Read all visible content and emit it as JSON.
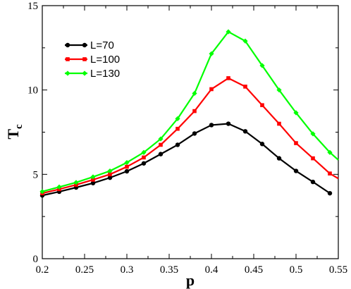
{
  "chart_data": {
    "type": "line",
    "title": "",
    "xlabel": "p",
    "ylabel_main": "T",
    "ylabel_sub": "c",
    "xlim": [
      0.2,
      0.55
    ],
    "ylim": [
      0,
      15
    ],
    "xticks": [
      0.2,
      0.25,
      0.3,
      0.35,
      0.4,
      0.45,
      0.5,
      0.55
    ],
    "xtick_labels": [
      "0.2",
      "0.25",
      "0.3",
      "0.35",
      "0.4",
      "0.45",
      "0.5",
      "0.55"
    ],
    "yticks": [
      0,
      5,
      10,
      15
    ],
    "ytick_labels": [
      "0",
      "5",
      "10",
      "15"
    ],
    "grid": false,
    "legend_position": "top-left",
    "series": [
      {
        "name": "L=70",
        "color": "#000000",
        "marker": "circle",
        "x": [
          0.2,
          0.22,
          0.24,
          0.26,
          0.28,
          0.3,
          0.32,
          0.34,
          0.36,
          0.38,
          0.4,
          0.42,
          0.44,
          0.46,
          0.48,
          0.5,
          0.52,
          0.54
        ],
        "y": [
          3.75,
          3.97,
          4.22,
          4.48,
          4.8,
          5.18,
          5.65,
          6.2,
          6.75,
          7.42,
          7.92,
          8.0,
          7.55,
          6.8,
          5.95,
          5.2,
          4.55,
          3.88
        ]
      },
      {
        "name": "L=100",
        "color": "#ff0000",
        "marker": "square",
        "x": [
          0.2,
          0.22,
          0.24,
          0.26,
          0.28,
          0.3,
          0.32,
          0.34,
          0.36,
          0.38,
          0.4,
          0.42,
          0.44,
          0.46,
          0.48,
          0.5,
          0.52,
          0.54,
          0.555
        ],
        "y": [
          3.88,
          4.12,
          4.38,
          4.68,
          5.0,
          5.45,
          6.0,
          6.75,
          7.7,
          8.75,
          10.05,
          10.7,
          10.2,
          9.1,
          8.0,
          6.85,
          5.95,
          5.05,
          4.75
        ]
      },
      {
        "name": "L=130",
        "color": "#00ff00",
        "marker": "diamond",
        "x": [
          0.2,
          0.22,
          0.24,
          0.26,
          0.28,
          0.3,
          0.32,
          0.34,
          0.36,
          0.38,
          0.4,
          0.42,
          0.44,
          0.46,
          0.48,
          0.5,
          0.52,
          0.54,
          0.555
        ],
        "y": [
          3.98,
          4.25,
          4.52,
          4.85,
          5.2,
          5.7,
          6.3,
          7.1,
          8.3,
          9.8,
          12.15,
          13.45,
          12.9,
          11.45,
          10.0,
          8.65,
          7.4,
          6.3,
          5.85
        ]
      }
    ]
  }
}
